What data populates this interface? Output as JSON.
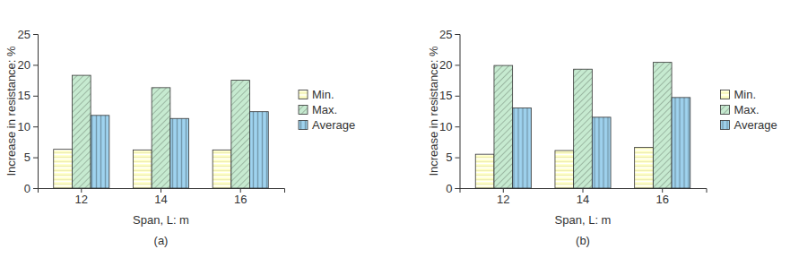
{
  "chart_data": [
    {
      "type": "bar",
      "title": "(a)",
      "x_label": "Span, L: m",
      "y_label": "Increase in resistance: %",
      "categories": [
        "12",
        "14",
        "16"
      ],
      "series": [
        {
          "name": "Min.",
          "color": "#ffffc2",
          "values": [
            6.3,
            6.2,
            6.2
          ]
        },
        {
          "name": "Max.",
          "color": "#c6ead0",
          "values": [
            18.3,
            16.3,
            17.5
          ]
        },
        {
          "name": "Average",
          "color": "#9fd3ef",
          "values": [
            11.8,
            11.3,
            12.4
          ]
        }
      ],
      "ylim": [
        0,
        25
      ],
      "yticks": [
        0,
        5,
        10,
        15,
        20,
        25
      ],
      "grid": false,
      "legend": "right"
    },
    {
      "type": "bar",
      "title": "(b)",
      "x_label": "Span, L: m",
      "y_label": "Increase in resistance: %",
      "categories": [
        "12",
        "14",
        "16"
      ],
      "series": [
        {
          "name": "Min.",
          "color": "#ffffc2",
          "values": [
            5.5,
            6.1,
            6.6
          ]
        },
        {
          "name": "Max.",
          "color": "#c6ead0",
          "values": [
            19.9,
            19.3,
            20.4
          ]
        },
        {
          "name": "Average",
          "color": "#9fd3ef",
          "values": [
            13.0,
            11.5,
            14.7
          ]
        }
      ],
      "ylim": [
        0,
        25
      ],
      "yticks": [
        0,
        5,
        10,
        15,
        20,
        25
      ],
      "grid": false,
      "legend": "right"
    }
  ]
}
